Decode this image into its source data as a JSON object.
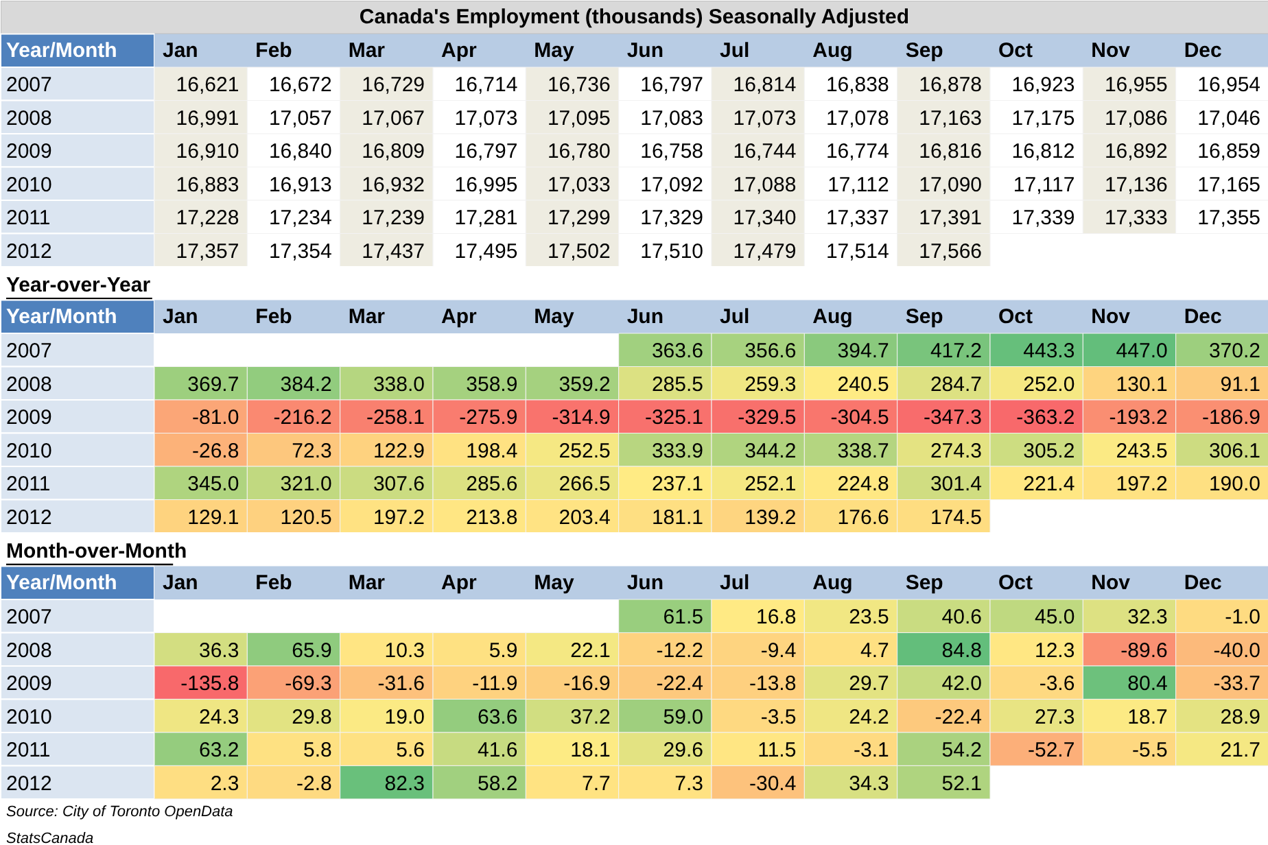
{
  "chart_data": [
    {
      "type": "heatmap",
      "title": "Canada's Employment (thousands) Seasonally Adjusted",
      "xlabel": "Year/Month",
      "colors": [
        "#eeece1",
        "#ffffff"
      ],
      "categories": [
        "Jan",
        "Feb",
        "Mar",
        "Apr",
        "May",
        "Jun",
        "Jul",
        "Aug",
        "Sep",
        "Oct",
        "Nov",
        "Dec"
      ],
      "y_categories": [
        "2007",
        "2008",
        "2009",
        "2010",
        "2011",
        "2012"
      ],
      "cells": [
        [
          16621,
          16672,
          16729,
          16714,
          16736,
          16797,
          16814,
          16838,
          16878,
          16923,
          16955,
          16954
        ],
        [
          16991,
          17057,
          17067,
          17073,
          17095,
          17083,
          17073,
          17078,
          17163,
          17175,
          17086,
          17046
        ],
        [
          16910,
          16840,
          16809,
          16797,
          16780,
          16758,
          16744,
          16774,
          16816,
          16812,
          16892,
          16859
        ],
        [
          16883,
          16913,
          16932,
          16995,
          17033,
          17092,
          17088,
          17112,
          17090,
          17117,
          17136,
          17165
        ],
        [
          17228,
          17234,
          17239,
          17281,
          17299,
          17329,
          17340,
          17337,
          17391,
          17339,
          17333,
          17355
        ],
        [
          17357,
          17354,
          17437,
          17495,
          17502,
          17510,
          17479,
          17514,
          17566,
          null,
          null,
          null
        ]
      ],
      "cell_labels": [
        [
          "16,621",
          "16,672",
          "16,729",
          "16,714",
          "16,736",
          "16,797",
          "16,814",
          "16,838",
          "16,878",
          "16,923",
          "16,955",
          "16,954"
        ],
        [
          "16,991",
          "17,057",
          "17,067",
          "17,073",
          "17,095",
          "17,083",
          "17,073",
          "17,078",
          "17,163",
          "17,175",
          "17,086",
          "17,046"
        ],
        [
          "16,910",
          "16,840",
          "16,809",
          "16,797",
          "16,780",
          "16,758",
          "16,744",
          "16,774",
          "16,816",
          "16,812",
          "16,892",
          "16,859"
        ],
        [
          "16,883",
          "16,913",
          "16,932",
          "16,995",
          "17,033",
          "17,092",
          "17,088",
          "17,112",
          "17,090",
          "17,117",
          "17,136",
          "17,165"
        ],
        [
          "17,228",
          "17,234",
          "17,239",
          "17,281",
          "17,299",
          "17,329",
          "17,340",
          "17,337",
          "17,391",
          "17,339",
          "17,333",
          "17,355"
        ],
        [
          "17,357",
          "17,354",
          "17,437",
          "17,495",
          "17,502",
          "17,510",
          "17,479",
          "17,514",
          "17,566",
          null,
          null,
          null
        ]
      ]
    },
    {
      "type": "heatmap",
      "title": "Year-over-Year",
      "xlabel": "Year/Month",
      "colors": [
        "#f8696b",
        "#ffeb84",
        "#63be7b"
      ],
      "categories": [
        "Jan",
        "Feb",
        "Mar",
        "Apr",
        "May",
        "Jun",
        "Jul",
        "Aug",
        "Sep",
        "Oct",
        "Nov",
        "Dec"
      ],
      "y_categories": [
        "2007",
        "2008",
        "2009",
        "2010",
        "2011",
        "2012"
      ],
      "cells": [
        [
          null,
          null,
          null,
          null,
          null,
          363.6,
          356.6,
          394.7,
          417.2,
          443.3,
          447.0,
          370.2
        ],
        [
          369.7,
          384.2,
          338.0,
          358.9,
          359.2,
          285.5,
          259.3,
          240.5,
          284.7,
          252.0,
          130.1,
          91.1
        ],
        [
          -81.0,
          -216.2,
          -258.1,
          -275.9,
          -314.9,
          -325.1,
          -329.5,
          -304.5,
          -347.3,
          -363.2,
          -193.2,
          -186.9
        ],
        [
          -26.8,
          72.3,
          122.9,
          198.4,
          252.5,
          333.9,
          344.2,
          338.7,
          274.3,
          305.2,
          243.5,
          306.1
        ],
        [
          345.0,
          321.0,
          307.6,
          285.6,
          266.5,
          237.1,
          252.1,
          224.8,
          301.4,
          221.4,
          197.2,
          190.0
        ],
        [
          129.1,
          120.5,
          197.2,
          213.8,
          203.4,
          181.1,
          139.2,
          176.6,
          174.5,
          null,
          null,
          null
        ]
      ],
      "cell_labels": [
        [
          null,
          null,
          null,
          null,
          null,
          "363.6",
          "356.6",
          "394.7",
          "417.2",
          "443.3",
          "447.0",
          "370.2"
        ],
        [
          "369.7",
          "384.2",
          "338.0",
          "358.9",
          "359.2",
          "285.5",
          "259.3",
          "240.5",
          "284.7",
          "252.0",
          "130.1",
          "91.1"
        ],
        [
          "-81.0",
          "-216.2",
          "-258.1",
          "-275.9",
          "-314.9",
          "-325.1",
          "-329.5",
          "-304.5",
          "-347.3",
          "-363.2",
          "-193.2",
          "-186.9"
        ],
        [
          "-26.8",
          "72.3",
          "122.9",
          "198.4",
          "252.5",
          "333.9",
          "344.2",
          "338.7",
          "274.3",
          "305.2",
          "243.5",
          "306.1"
        ],
        [
          "345.0",
          "321.0",
          "307.6",
          "285.6",
          "266.5",
          "237.1",
          "252.1",
          "224.8",
          "301.4",
          "221.4",
          "197.2",
          "190.0"
        ],
        [
          "129.1",
          "120.5",
          "197.2",
          "213.8",
          "203.4",
          "181.1",
          "139.2",
          "176.6",
          "174.5",
          null,
          null,
          null
        ]
      ]
    },
    {
      "type": "heatmap",
      "title": "Month-over-Month",
      "xlabel": "Year/Month",
      "colors": [
        "#f8696b",
        "#ffeb84",
        "#63be7b"
      ],
      "categories": [
        "Jan",
        "Feb",
        "Mar",
        "Apr",
        "May",
        "Jun",
        "Jul",
        "Aug",
        "Sep",
        "Oct",
        "Nov",
        "Dec"
      ],
      "y_categories": [
        "2007",
        "2008",
        "2009",
        "2010",
        "2011",
        "2012"
      ],
      "cells": [
        [
          null,
          null,
          null,
          null,
          null,
          61.5,
          16.8,
          23.5,
          40.6,
          45.0,
          32.3,
          -1.0
        ],
        [
          36.3,
          65.9,
          10.3,
          5.9,
          22.1,
          -12.2,
          -9.4,
          4.7,
          84.8,
          12.3,
          -89.6,
          -40.0
        ],
        [
          -135.8,
          -69.3,
          -31.6,
          -11.9,
          -16.9,
          -22.4,
          -13.8,
          29.7,
          42.0,
          -3.6,
          80.4,
          -33.7
        ],
        [
          24.3,
          29.8,
          19.0,
          63.6,
          37.2,
          59.0,
          -3.5,
          24.2,
          -22.4,
          27.3,
          18.7,
          28.9
        ],
        [
          63.2,
          5.8,
          5.6,
          41.6,
          18.1,
          29.6,
          11.5,
          -3.1,
          54.2,
          -52.7,
          -5.5,
          21.7
        ],
        [
          2.3,
          -2.8,
          82.3,
          58.2,
          7.7,
          7.3,
          -30.4,
          34.3,
          52.1,
          null,
          null,
          null
        ]
      ],
      "cell_labels": [
        [
          null,
          null,
          null,
          null,
          null,
          "61.5",
          "16.8",
          "23.5",
          "40.6",
          "45.0",
          "32.3",
          "-1.0"
        ],
        [
          "36.3",
          "65.9",
          "10.3",
          "5.9",
          "22.1",
          "-12.2",
          "-9.4",
          "4.7",
          "84.8",
          "12.3",
          "-89.6",
          "-40.0"
        ],
        [
          "-135.8",
          "-69.3",
          "-31.6",
          "-11.9",
          "-16.9",
          "-22.4",
          "-13.8",
          "29.7",
          "42.0",
          "-3.6",
          "80.4",
          "-33.7"
        ],
        [
          "24.3",
          "29.8",
          "19.0",
          "63.6",
          "37.2",
          "59.0",
          "-3.5",
          "24.2",
          "-22.4",
          "27.3",
          "18.7",
          "28.9"
        ],
        [
          "63.2",
          "5.8",
          "5.6",
          "41.6",
          "18.1",
          "29.6",
          "11.5",
          "-3.1",
          "54.2",
          "-52.7",
          "-5.5",
          "21.7"
        ],
        [
          "2.3",
          "-2.8",
          "82.3",
          "58.2",
          "7.7",
          "7.3",
          "-30.4",
          "34.3",
          "52.1",
          null,
          null,
          null
        ]
      ],
      "annotations": [
        "Source: City of Toronto OpenData",
        "StatsCanada"
      ]
    }
  ]
}
